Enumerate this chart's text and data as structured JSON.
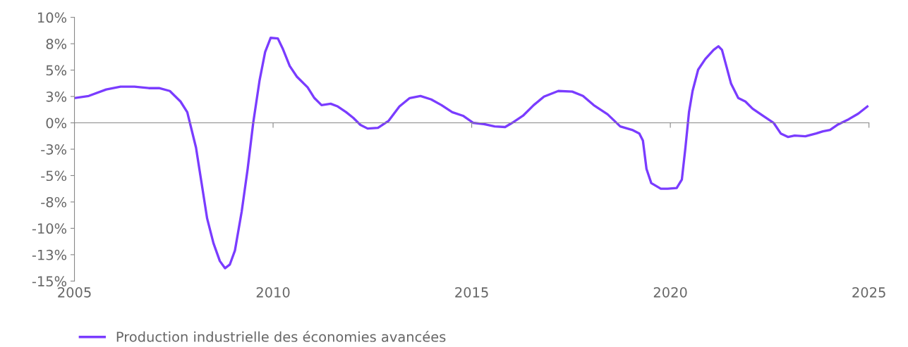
{
  "chart_data": {
    "type": "line",
    "x": [
      2005.0,
      2005.36,
      2005.8,
      2006.16,
      2006.51,
      2006.87,
      2007.13,
      2007.4,
      2007.67,
      2007.84,
      2008.06,
      2008.2,
      2008.34,
      2008.5,
      2008.66,
      2008.79,
      2008.91,
      2009.04,
      2009.21,
      2009.36,
      2009.5,
      2009.66,
      2009.8,
      2009.94,
      2010.12,
      2010.24,
      2010.42,
      2010.6,
      2010.87,
      2011.04,
      2011.22,
      2011.45,
      2011.63,
      2011.84,
      2012.02,
      2012.2,
      2012.38,
      2012.64,
      2012.91,
      2013.18,
      2013.44,
      2013.71,
      2013.98,
      2014.24,
      2014.51,
      2014.78,
      2015.04,
      2015.31,
      2015.58,
      2015.84,
      2016.02,
      2016.29,
      2016.56,
      2016.82,
      2017.18,
      2017.53,
      2017.8,
      2018.07,
      2018.42,
      2018.74,
      2019.04,
      2019.22,
      2019.31,
      2019.4,
      2019.52,
      2019.76,
      2019.93,
      2020.16,
      2020.29,
      2020.38,
      2020.47,
      2020.56,
      2020.7,
      2020.88,
      2021.09,
      2021.21,
      2021.3,
      2021.41,
      2021.53,
      2021.71,
      2021.89,
      2022.07,
      2022.33,
      2022.6,
      2022.78,
      2022.96,
      2023.13,
      2023.4,
      2023.67,
      2023.84,
      2024.02,
      2024.2,
      2024.49,
      2024.73,
      2024.96
    ],
    "series": [
      {
        "name": "Production industrielle des économies avancées",
        "color": "#7a3cff",
        "values": [
          2.35,
          2.55,
          3.16,
          3.43,
          3.43,
          3.29,
          3.29,
          3.02,
          2.02,
          1.01,
          -2.35,
          -5.71,
          -9.07,
          -11.42,
          -13.1,
          -13.78,
          -13.44,
          -12.1,
          -8.4,
          -4.37,
          0,
          4.03,
          6.72,
          8.06,
          8.0,
          7.06,
          5.38,
          4.37,
          3.36,
          2.35,
          1.68,
          1.81,
          1.55,
          1.01,
          0.47,
          -0.2,
          -0.54,
          -0.47,
          0.2,
          1.55,
          2.35,
          2.55,
          2.22,
          1.68,
          1.01,
          0.67,
          0,
          -0.13,
          -0.34,
          -0.4,
          0,
          0.67,
          1.68,
          2.49,
          3.02,
          2.96,
          2.55,
          1.68,
          0.81,
          -0.34,
          -0.67,
          -1.01,
          -1.68,
          -4.37,
          -5.71,
          -6.25,
          -6.25,
          -6.18,
          -5.38,
          -2.35,
          1.01,
          3.02,
          5.04,
          6.05,
          6.92,
          7.26,
          6.92,
          5.38,
          3.7,
          2.35,
          2.02,
          1.34,
          0.67,
          0,
          -1.01,
          -1.34,
          -1.21,
          -1.28,
          -1.01,
          -0.81,
          -0.67,
          -0.2,
          0.34,
          0.87,
          1.55
        ]
      }
    ],
    "xlim": [
      2005,
      2025
    ],
    "xticks": [
      2005,
      2010,
      2015,
      2020,
      2025
    ],
    "ylim": [
      -15,
      10
    ],
    "yticks": [
      {
        "value": -15,
        "label": "-15%"
      },
      {
        "value": -12.5,
        "label": "-13%"
      },
      {
        "value": -10,
        "label": "-10%"
      },
      {
        "value": -7.5,
        "label": "-8%"
      },
      {
        "value": -5,
        "label": "-5%"
      },
      {
        "value": -2.5,
        "label": "-3%"
      },
      {
        "value": 0,
        "label": "0%"
      },
      {
        "value": 2.5,
        "label": "3%"
      },
      {
        "value": 5,
        "label": "5%"
      },
      {
        "value": 7.5,
        "label": "8%"
      },
      {
        "value": 10,
        "label": "10%"
      }
    ],
    "legend": "bottom left",
    "marker": "none",
    "line_style": "solid"
  }
}
